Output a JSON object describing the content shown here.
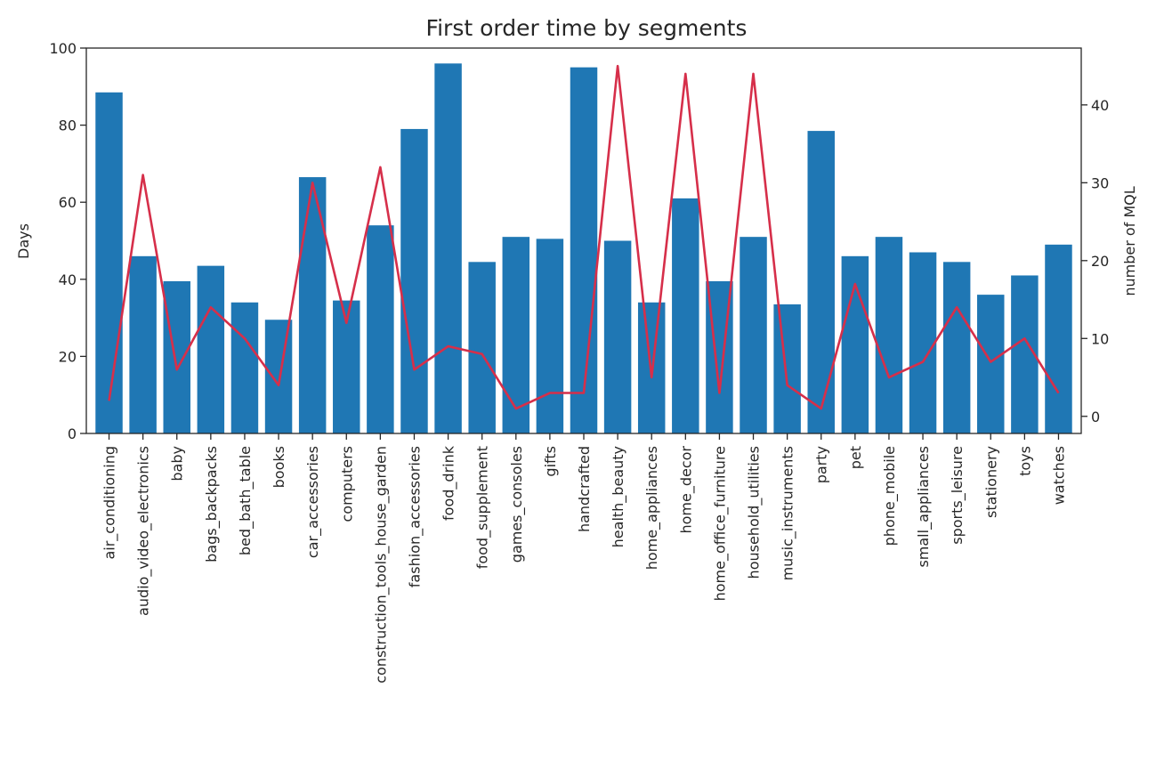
{
  "chart_data": {
    "type": "bar+line",
    "title": "First order time by segments",
    "xlabel": "",
    "ylabel_left": "Days",
    "ylabel_right": "number of MQL",
    "ylim_left": [
      0,
      100
    ],
    "yticks_left": [
      0,
      20,
      40,
      60,
      80,
      100
    ],
    "ylim_right": [
      -2.2,
      47.3
    ],
    "yticks_right": [
      0,
      10,
      20,
      30,
      40
    ],
    "categories": [
      "air_conditioning",
      "audio_video_electronics",
      "baby",
      "bags_backpacks",
      "bed_bath_table",
      "books",
      "car_accessories",
      "computers",
      "construction_tools_house_garden",
      "fashion_accessories",
      "food_drink",
      "food_supplement",
      "games_consoles",
      "gifts",
      "handcrafted",
      "health_beauty",
      "home_appliances",
      "home_decor",
      "home_office_furniture",
      "household_utilities",
      "music_instruments",
      "party",
      "pet",
      "phone_mobile",
      "small_appliances",
      "sports_leisure",
      "stationery",
      "toys",
      "watches"
    ],
    "series": [
      {
        "name": "Days",
        "type": "bar",
        "axis": "left",
        "color": "#1f77b4",
        "values": [
          88.5,
          46,
          39.5,
          43.5,
          34,
          29.5,
          66.5,
          34.5,
          54,
          79,
          96,
          44.5,
          51,
          50.5,
          95,
          50,
          34,
          61,
          39.5,
          51,
          33.5,
          78.5,
          46,
          51,
          47,
          44.5,
          36,
          41,
          49
        ]
      },
      {
        "name": "number of MQL",
        "type": "line",
        "axis": "right",
        "color": "#d62f4a",
        "values": [
          2,
          31,
          6,
          14,
          10,
          4,
          30,
          12,
          32,
          6,
          9,
          8,
          1,
          3,
          3,
          45,
          5,
          44,
          3,
          44,
          4,
          1,
          17,
          5,
          7,
          14,
          7,
          10,
          3
        ]
      }
    ]
  }
}
